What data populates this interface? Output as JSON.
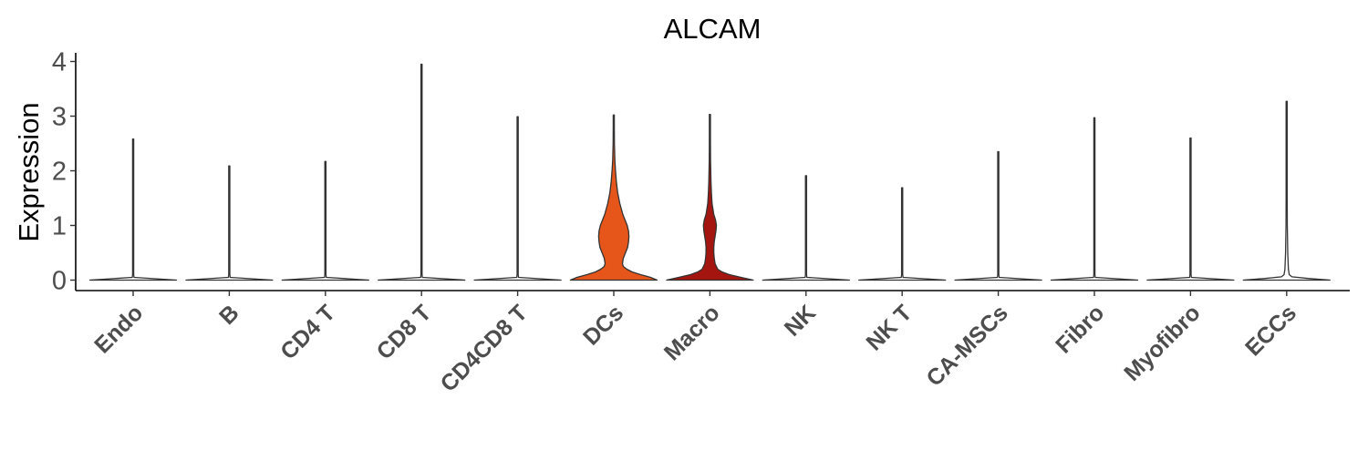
{
  "chart_data": {
    "type": "violin",
    "title": "ALCAM",
    "xlabel": "",
    "ylabel": "Expression",
    "ylim": [
      -0.2,
      4.15
    ],
    "yticks": [
      0,
      1,
      2,
      3,
      4
    ],
    "grid": false,
    "legend": "none",
    "categories": [
      "Endo",
      "B",
      "CD4 T",
      "CD8 T",
      "CD4CD8 T",
      "DCs",
      "Macro",
      "NK",
      "NK T",
      "CA-MSCs",
      "Fibro",
      "Myofibro",
      "ECCs"
    ],
    "max_values": [
      2.58,
      2.09,
      2.17,
      3.95,
      2.99,
      3.02,
      3.03,
      1.91,
      1.69,
      2.35,
      2.97,
      2.6,
      3.27
    ],
    "colors": [
      "#ffffff",
      "#ffffff",
      "#ffffff",
      "#ffffff",
      "#ffffff",
      "#e6561a",
      "#a5150f",
      "#ffffff",
      "#ffffff",
      "#ffffff",
      "#ffffff",
      "#ffffff",
      "#ffffff"
    ],
    "density_profiles": [
      {
        "y": [
          0,
          0.05,
          0.1
        ],
        "w": [
          1,
          0.02,
          0.01
        ]
      },
      {
        "y": [
          0,
          0.05,
          0.1
        ],
        "w": [
          1,
          0.02,
          0.01
        ]
      },
      {
        "y": [
          0,
          0.05,
          0.1
        ],
        "w": [
          1,
          0.02,
          0.01
        ]
      },
      {
        "y": [
          0,
          0.05,
          0.1
        ],
        "w": [
          1,
          0.02,
          0.01
        ]
      },
      {
        "y": [
          0,
          0.05,
          0.1
        ],
        "w": [
          1,
          0.02,
          0.01
        ]
      },
      {
        "y": [
          0,
          0.05,
          0.1,
          0.15,
          0.2,
          0.25,
          0.3,
          0.4,
          0.5,
          0.6,
          0.7,
          0.8,
          0.9,
          1.0,
          1.1,
          1.2,
          1.4,
          1.6,
          1.8,
          2.0,
          2.2,
          2.5,
          2.8,
          3.02
        ],
        "w": [
          1,
          0.85,
          0.62,
          0.42,
          0.3,
          0.22,
          0.2,
          0.22,
          0.27,
          0.32,
          0.34,
          0.35,
          0.34,
          0.31,
          0.26,
          0.21,
          0.14,
          0.09,
          0.06,
          0.04,
          0.025,
          0.015,
          0.01,
          0.005
        ]
      },
      {
        "y": [
          0,
          0.05,
          0.1,
          0.15,
          0.2,
          0.3,
          0.4,
          0.5,
          0.6,
          0.7,
          0.8,
          0.9,
          1.0,
          1.1,
          1.2,
          1.4,
          1.6,
          1.8,
          2.0,
          2.2,
          2.5,
          2.8,
          3.03
        ],
        "w": [
          1,
          0.72,
          0.45,
          0.28,
          0.18,
          0.12,
          0.1,
          0.09,
          0.09,
          0.1,
          0.12,
          0.14,
          0.15,
          0.13,
          0.09,
          0.05,
          0.035,
          0.025,
          0.02,
          0.015,
          0.01,
          0.007,
          0.004
        ]
      },
      {
        "y": [
          0,
          0.05,
          0.1
        ],
        "w": [
          1,
          0.02,
          0.01
        ]
      },
      {
        "y": [
          0,
          0.05,
          0.1
        ],
        "w": [
          1,
          0.02,
          0.01
        ]
      },
      {
        "y": [
          0,
          0.05,
          0.1
        ],
        "w": [
          1,
          0.02,
          0.01
        ]
      },
      {
        "y": [
          0,
          0.05,
          0.1
        ],
        "w": [
          1,
          0.02,
          0.01
        ]
      },
      {
        "y": [
          0,
          0.05,
          0.1
        ],
        "w": [
          1,
          0.02,
          0.01
        ]
      },
      {
        "y": [
          0,
          0.03,
          0.06,
          0.1,
          0.2,
          0.5,
          1.0,
          1.5
        ],
        "w": [
          1,
          0.5,
          0.12,
          0.06,
          0.04,
          0.025,
          0.015,
          0.008
        ]
      }
    ]
  }
}
